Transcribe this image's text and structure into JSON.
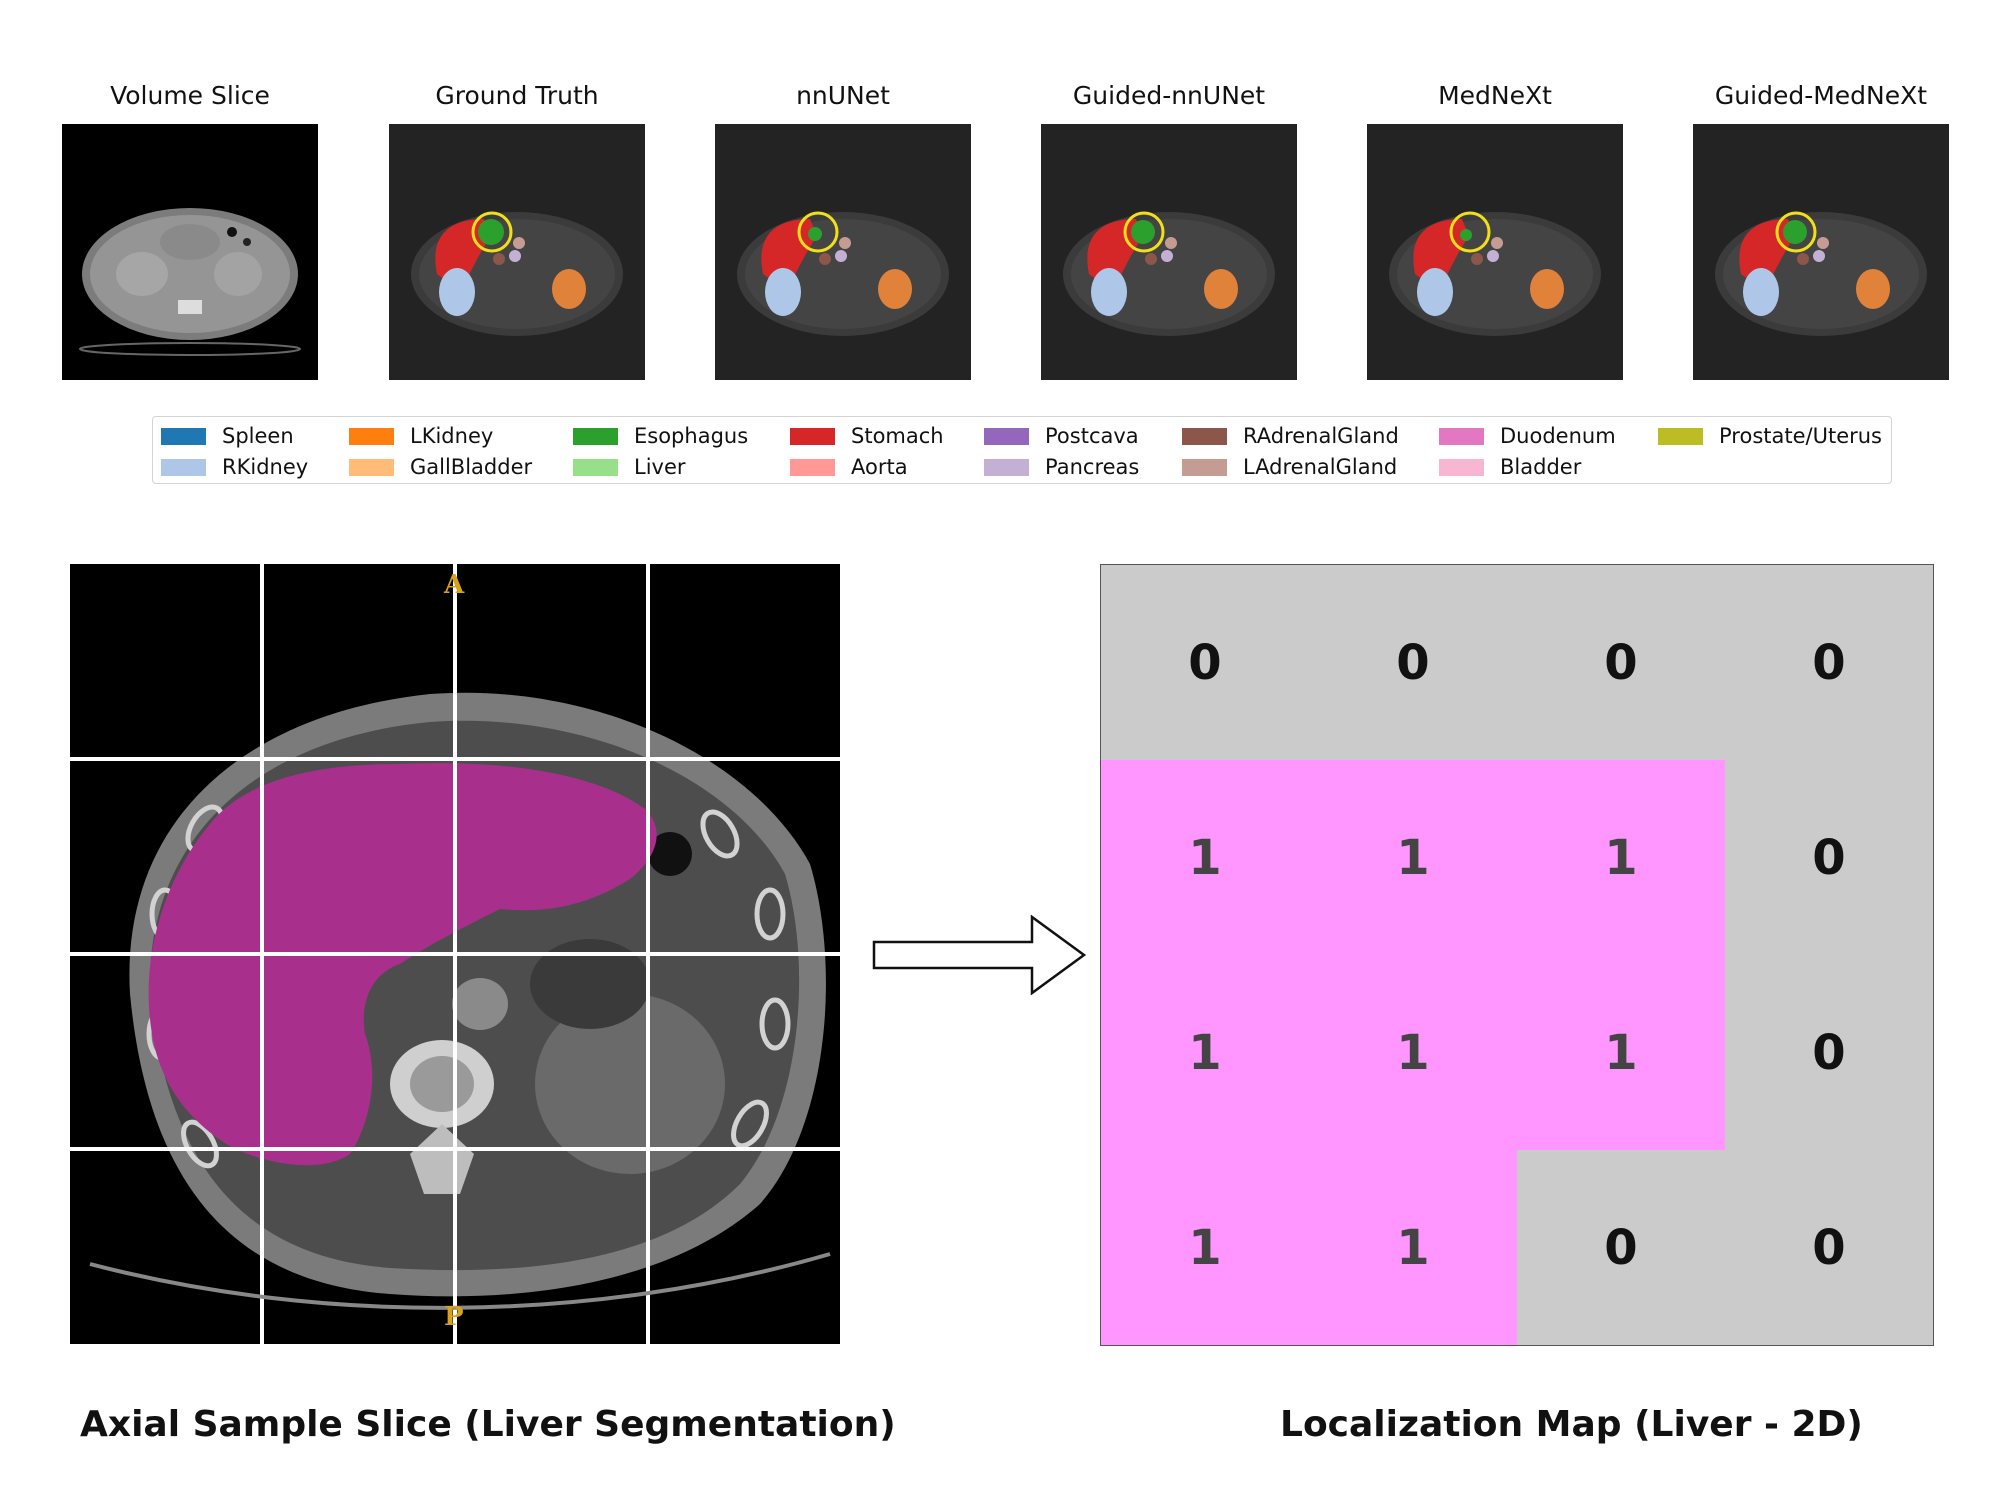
{
  "panels": [
    {
      "title": "Volume Slice"
    },
    {
      "title": "Ground Truth"
    },
    {
      "title": "nnUNet"
    },
    {
      "title": "Guided-nnUNet"
    },
    {
      "title": "MedNeXt"
    },
    {
      "title": "Guided-MedNeXt"
    }
  ],
  "legend": [
    {
      "label": "Spleen",
      "color": "#1f77b4"
    },
    {
      "label": "RKidney",
      "color": "#aec7e8"
    },
    {
      "label": "LKidney",
      "color": "#ff7f0e"
    },
    {
      "label": "GallBladder",
      "color": "#ffbb78"
    },
    {
      "label": "Esophagus",
      "color": "#2ca02c"
    },
    {
      "label": "Liver",
      "color": "#98df8a"
    },
    {
      "label": "Stomach",
      "color": "#d62728"
    },
    {
      "label": "Aorta",
      "color": "#ff9896"
    },
    {
      "label": "Postcava",
      "color": "#9467bd"
    },
    {
      "label": "Pancreas",
      "color": "#c5b0d5"
    },
    {
      "label": "RAdrenalGland",
      "color": "#8c564b"
    },
    {
      "label": "LAdrenalGland",
      "color": "#c49c94"
    },
    {
      "label": "Duodenum",
      "color": "#e377c2"
    },
    {
      "label": "Bladder",
      "color": "#f7b6d2"
    },
    {
      "label": "Prostate/Uterus",
      "color": "#bcbd22"
    }
  ],
  "axial": {
    "orientation_top": "A",
    "orientation_bottom": "P",
    "mask_color": "#a8308c",
    "grid_color": "#ffffff"
  },
  "localization_map": {
    "rows": [
      [
        0,
        0,
        0,
        0
      ],
      [
        1,
        1,
        1,
        0
      ],
      [
        1,
        1,
        1,
        0
      ],
      [
        1,
        1,
        0,
        0
      ]
    ],
    "active_color": "#ff96ff",
    "inactive_color": "#cbcbcb"
  },
  "captions": {
    "left": "Axial Sample Slice (Liver Segmentation)",
    "right": "Localization Map (Liver - 2D)"
  }
}
